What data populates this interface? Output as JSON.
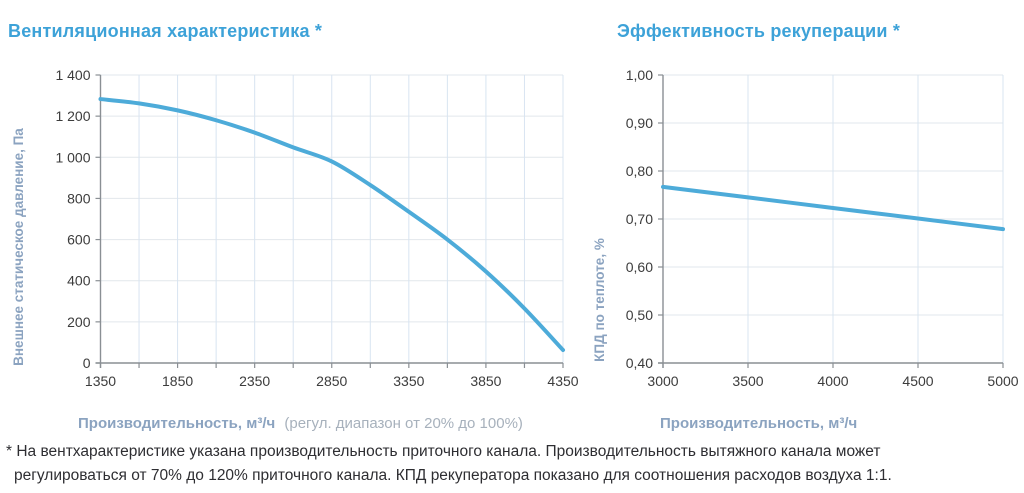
{
  "colors": {
    "title_blue": "#3da2d8",
    "curve_blue": "#4dabd9",
    "axis_title_gray_blue": "#8ba3c0",
    "axis_note_gray": "#a7b1bc",
    "tick_label": "#3c3c3c",
    "axis_line_gray": "#8a8f94",
    "grid_vertical": "#d8e4f1",
    "grid_horizontal": "#e2e7ec",
    "footnote_text": "#2e2e32"
  },
  "chart_data": [
    {
      "type": "line",
      "title": "Вентиляционная характеристика *",
      "xlabel": "Производительность, м³/ч",
      "xlabel_note": "(регул. диапазон от 20% до 100%)",
      "ylabel": "Внешнее статическое давление, Па",
      "xlim": [
        1350,
        4350
      ],
      "ylim": [
        0,
        1400
      ],
      "grid": true,
      "legend": "none",
      "x_tick_labels": [
        {
          "value": 1350,
          "label": "1350"
        },
        {
          "value": 1850,
          "label": "1850"
        },
        {
          "value": 2350,
          "label": "2350"
        },
        {
          "value": 2850,
          "label": "2850"
        },
        {
          "value": 3350,
          "label": "3350"
        },
        {
          "value": 3850,
          "label": "3850"
        },
        {
          "value": 4350,
          "label": "4350"
        }
      ],
      "x_tick_marks": [
        1350,
        1600,
        1850,
        2100,
        2350,
        2600,
        2850,
        3100,
        3350,
        3600,
        3850,
        4100,
        4350
      ],
      "x_gridlines": [
        1600,
        1850,
        2100,
        2350,
        2600,
        2850,
        3100,
        3350,
        3600,
        3850,
        4100,
        4350
      ],
      "y_ticks": [
        {
          "value": 0,
          "label": "0"
        },
        {
          "value": 200,
          "label": "200"
        },
        {
          "value": 400,
          "label": "400"
        },
        {
          "value": 600,
          "label": "600"
        },
        {
          "value": 800,
          "label": "800"
        },
        {
          "value": 1000,
          "label": "1 000"
        },
        {
          "value": 1200,
          "label": "1 200"
        },
        {
          "value": 1400,
          "label": "1 400"
        }
      ],
      "y_gridlines": [
        200,
        400,
        600,
        800,
        1000,
        1200,
        1400
      ],
      "series": [
        {
          "name": "fan-curve",
          "x": [
            1350,
            1600,
            1850,
            2100,
            2350,
            2600,
            2850,
            3100,
            3350,
            3600,
            3850,
            4100,
            4350
          ],
          "y": [
            1283,
            1262,
            1228,
            1180,
            1120,
            1048,
            980,
            865,
            735,
            600,
            445,
            265,
            63
          ]
        }
      ]
    },
    {
      "type": "line",
      "title": "Эффективность рекуперации *",
      "xlabel": "Производительность, м³/ч",
      "xlabel_note": "",
      "ylabel": "КПД по теплоте, %",
      "xlim": [
        3000,
        5000
      ],
      "ylim": [
        0.4,
        1.0
      ],
      "grid": true,
      "legend": "none",
      "x_tick_labels": [
        {
          "value": 3000,
          "label": "3000"
        },
        {
          "value": 3500,
          "label": "3500"
        },
        {
          "value": 4000,
          "label": "4000"
        },
        {
          "value": 4500,
          "label": "4500"
        },
        {
          "value": 5000,
          "label": "5000"
        }
      ],
      "x_tick_marks": [
        3000,
        3500,
        4000,
        4500,
        5000
      ],
      "x_gridlines": [
        3500,
        4000,
        4500,
        5000
      ],
      "y_ticks": [
        {
          "value": 0.4,
          "label": "0,40"
        },
        {
          "value": 0.5,
          "label": "0,50"
        },
        {
          "value": 0.6,
          "label": "0,60"
        },
        {
          "value": 0.7,
          "label": "0,70"
        },
        {
          "value": 0.8,
          "label": "0,80"
        },
        {
          "value": 0.9,
          "label": "0,90"
        },
        {
          "value": 1.0,
          "label": "1,00"
        }
      ],
      "y_gridlines": [
        0.5,
        0.6,
        0.7,
        0.8,
        0.9,
        1.0
      ],
      "series": [
        {
          "name": "efficiency-curve",
          "x": [
            3000,
            3500,
            4000,
            4500,
            5000
          ],
          "y": [
            0.767,
            0.745,
            0.723,
            0.701,
            0.679
          ]
        }
      ]
    }
  ],
  "footnote": {
    "lines": [
      "* На вентхарактеристике указана производительность приточного канала. Производительность вытяжного канала может",
      "регулироваться от 70% до 120% приточного канала. КПД рекуператора показано для соотношения расходов воздуха 1:1."
    ]
  }
}
